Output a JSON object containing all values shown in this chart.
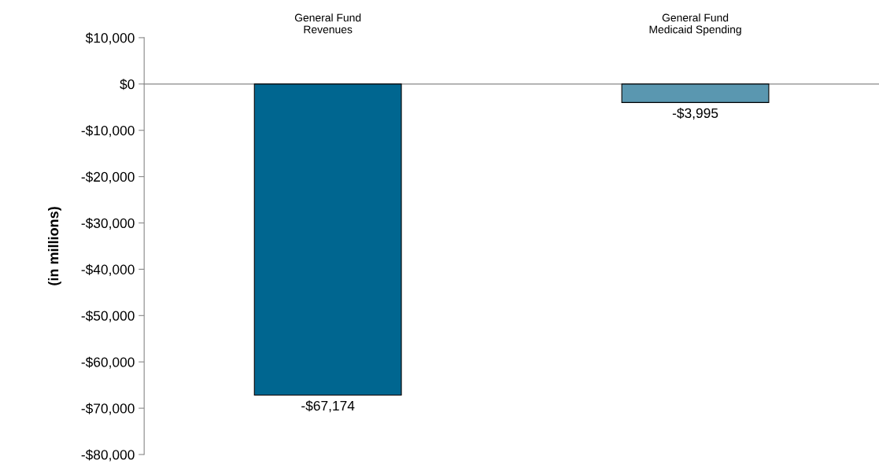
{
  "chart_data": {
    "type": "bar",
    "ylabel": "(in millions)",
    "categories": [
      "General Fund\nRevenues",
      "General Fund\nMedicaid Spending"
    ],
    "values": [
      -67174,
      -3995
    ],
    "colors": [
      "#006690",
      "#5a97b0"
    ],
    "value_labels": [
      "-$67,174",
      "-$3,995"
    ],
    "ylim": [
      -80000,
      10000
    ],
    "yticks": [
      {
        "value": 10000,
        "label": "$10,000"
      },
      {
        "value": 0,
        "label": "$0"
      },
      {
        "value": -10000,
        "label": "-$10,000"
      },
      {
        "value": -20000,
        "label": "-$20,000"
      },
      {
        "value": -30000,
        "label": "-$30,000"
      },
      {
        "value": -40000,
        "label": "-$40,000"
      },
      {
        "value": -50000,
        "label": "-$50,000"
      },
      {
        "value": -60000,
        "label": "-$60,000"
      },
      {
        "value": -70000,
        "label": "-$70,000"
      },
      {
        "value": -80000,
        "label": "-$80,000"
      }
    ],
    "legend": false
  }
}
